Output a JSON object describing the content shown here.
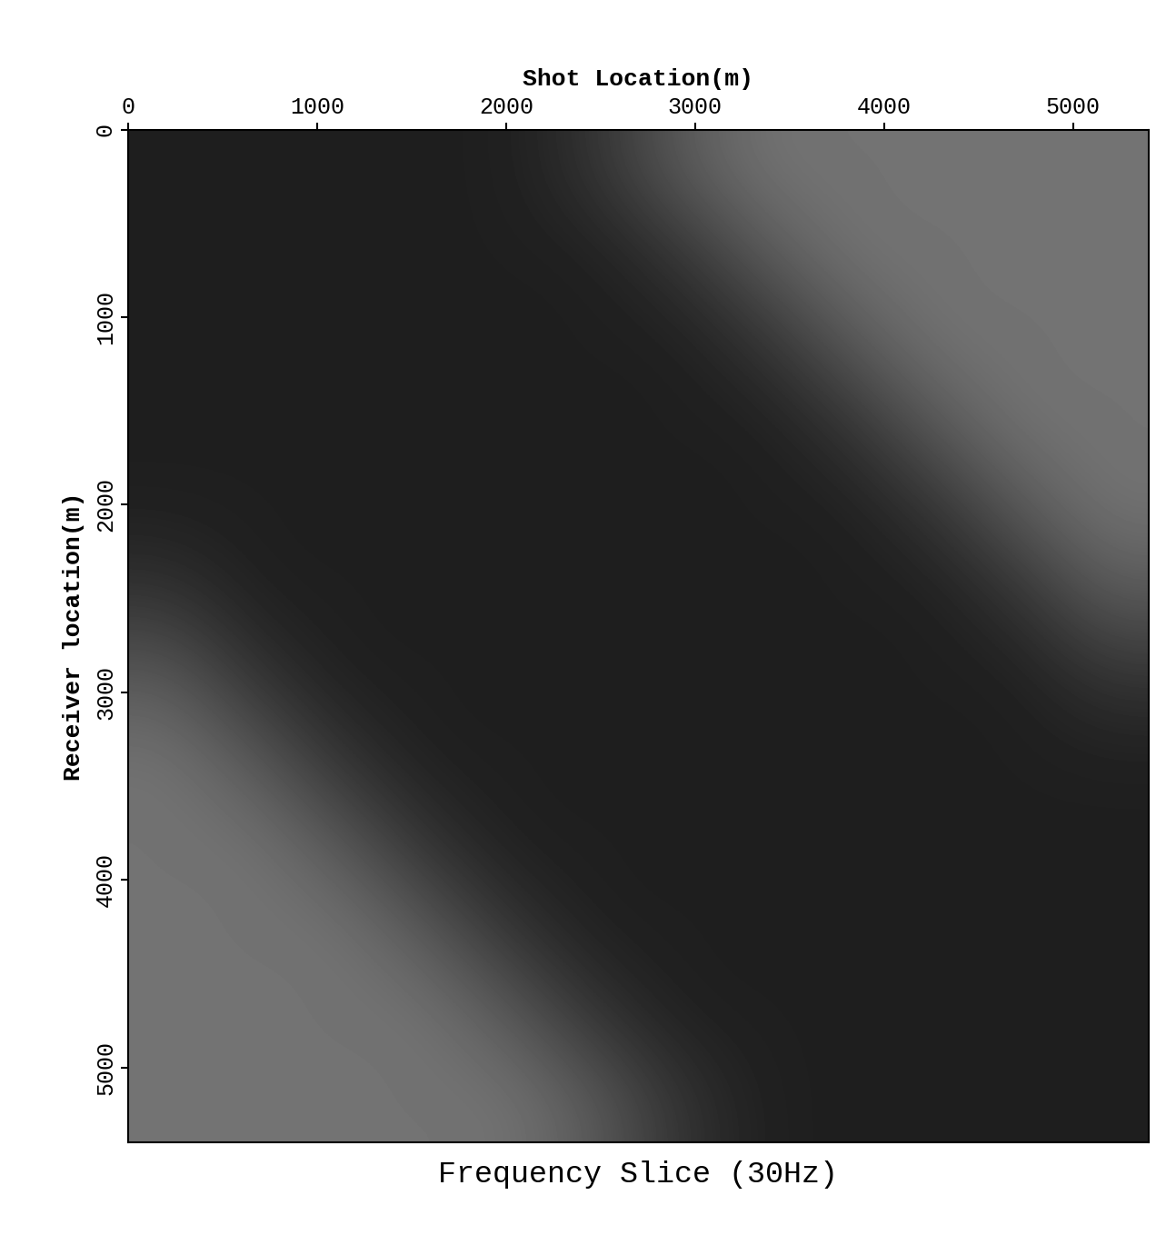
{
  "chart_data": {
    "type": "heatmap",
    "title": "Frequency Slice (30Hz)",
    "x_label": "Shot Location(m)",
    "y_label": "Receiver location(m)",
    "xlim": [
      0,
      5400
    ],
    "ylim": [
      5400,
      0
    ],
    "xticks": [
      0,
      1000,
      2000,
      3000,
      4000,
      5000
    ],
    "yticks": [
      0,
      1000,
      2000,
      3000,
      4000,
      5000
    ],
    "color_range": [
      0,
      1
    ],
    "cells": [
      [
        0.12,
        0.12,
        0.12,
        0.12,
        0.12,
        0.2,
        0.35,
        0.45,
        0.45,
        0.45,
        0.45,
        0.45
      ],
      [
        0.12,
        0.12,
        0.12,
        0.12,
        0.12,
        0.12,
        0.2,
        0.35,
        0.45,
        0.45,
        0.45,
        0.45
      ],
      [
        0.12,
        0.12,
        0.12,
        0.12,
        0.12,
        0.12,
        0.12,
        0.2,
        0.35,
        0.45,
        0.45,
        0.45
      ],
      [
        0.12,
        0.12,
        0.12,
        0.12,
        0.12,
        0.12,
        0.12,
        0.12,
        0.2,
        0.35,
        0.45,
        0.45
      ],
      [
        0.12,
        0.12,
        0.12,
        0.12,
        0.12,
        0.12,
        0.12,
        0.12,
        0.12,
        0.2,
        0.35,
        0.45
      ],
      [
        0.2,
        0.12,
        0.12,
        0.12,
        0.12,
        0.12,
        0.12,
        0.12,
        0.12,
        0.12,
        0.2,
        0.35
      ],
      [
        0.35,
        0.2,
        0.12,
        0.12,
        0.12,
        0.12,
        0.12,
        0.12,
        0.12,
        0.12,
        0.12,
        0.2
      ],
      [
        0.45,
        0.35,
        0.2,
        0.12,
        0.12,
        0.12,
        0.12,
        0.12,
        0.12,
        0.12,
        0.12,
        0.12
      ],
      [
        0.45,
        0.45,
        0.35,
        0.2,
        0.12,
        0.12,
        0.12,
        0.12,
        0.12,
        0.12,
        0.12,
        0.12
      ],
      [
        0.45,
        0.45,
        0.45,
        0.35,
        0.2,
        0.12,
        0.12,
        0.12,
        0.12,
        0.12,
        0.12,
        0.12
      ],
      [
        0.45,
        0.45,
        0.45,
        0.45,
        0.35,
        0.2,
        0.12,
        0.12,
        0.12,
        0.12,
        0.12,
        0.12
      ],
      [
        0.45,
        0.45,
        0.45,
        0.45,
        0.45,
        0.35,
        0.2,
        0.12,
        0.12,
        0.12,
        0.12,
        0.12
      ]
    ]
  }
}
